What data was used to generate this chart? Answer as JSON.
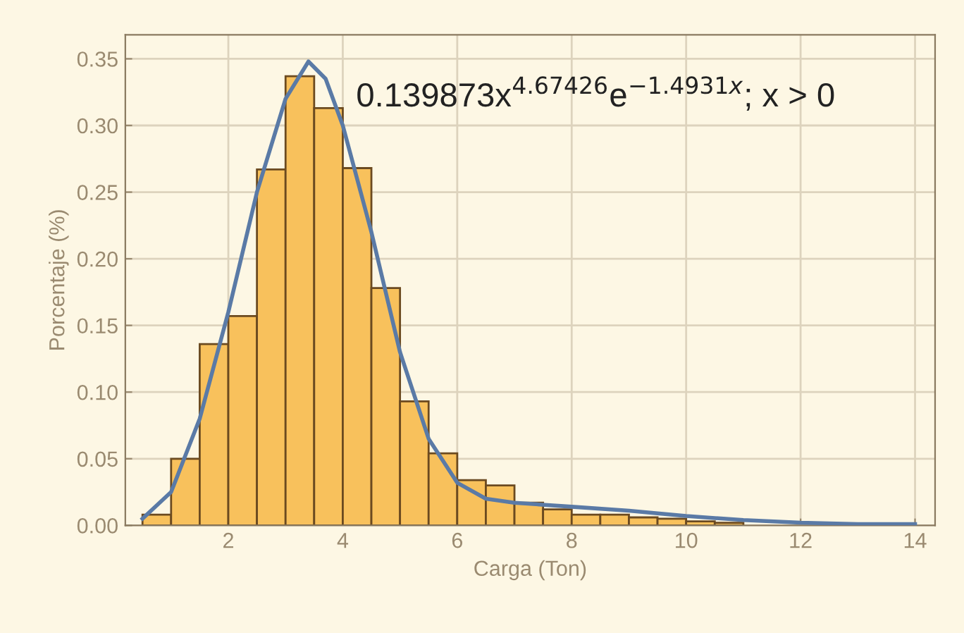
{
  "chart_data": {
    "type": "histogram",
    "xlabel": "Carga (Ton)",
    "ylabel": "Porcentaje (%)",
    "bins": [
      0.5,
      1,
      1.5,
      2,
      2.5,
      3,
      3.5,
      4,
      4.5,
      5,
      5.5,
      6,
      6.5,
      7,
      7.5,
      8,
      8.5,
      9,
      9.5,
      10,
      10.5,
      11
    ],
    "values": [
      0.008,
      0.05,
      0.136,
      0.157,
      0.267,
      0.337,
      0.313,
      0.268,
      0.178,
      0.093,
      0.054,
      0.034,
      0.03,
      0.017,
      0.012,
      0.008,
      0.008,
      0.006,
      0.005,
      0.003,
      0.002
    ],
    "color": "#f8c15c",
    "series": [
      {
        "type": "line",
        "color": "#5a7aa6",
        "x": [
          0.5,
          1,
          1.5,
          2,
          2.5,
          3,
          3.4,
          3.7,
          4,
          4.5,
          5,
          5.5,
          6,
          6.5,
          7,
          8,
          9,
          10,
          11,
          12,
          13,
          14
        ],
        "values": [
          0.005,
          0.025,
          0.08,
          0.16,
          0.25,
          0.32,
          0.348,
          0.335,
          0.3,
          0.22,
          0.13,
          0.065,
          0.032,
          0.02,
          0.017,
          0.014,
          0.011,
          0.007,
          0.004,
          0.002,
          0.001,
          0.001
        ]
      }
    ],
    "annotations": [
      "0.139873x$^{4.67426}$e$^{−1.4931x}$; x > 0"
    ],
    "xlim": [
      0.2,
      14.35
    ],
    "ylim": [
      0,
      0.368
    ],
    "xticks": [
      2,
      4,
      6,
      8,
      10,
      12,
      14
    ],
    "yticks": [
      {
        "value": 0,
        "label": "0.00"
      },
      {
        "value": 0.05,
        "label": "0.05"
      },
      {
        "value": 0.1,
        "label": "0.10"
      },
      {
        "value": 0.15,
        "label": "0.15"
      },
      {
        "value": 0.2,
        "label": "0.20"
      },
      {
        "value": 0.25,
        "label": "0.25"
      },
      {
        "value": 0.3,
        "label": "0.30"
      },
      {
        "value": 0.35,
        "label": "0.35"
      }
    ],
    "grid": true
  }
}
